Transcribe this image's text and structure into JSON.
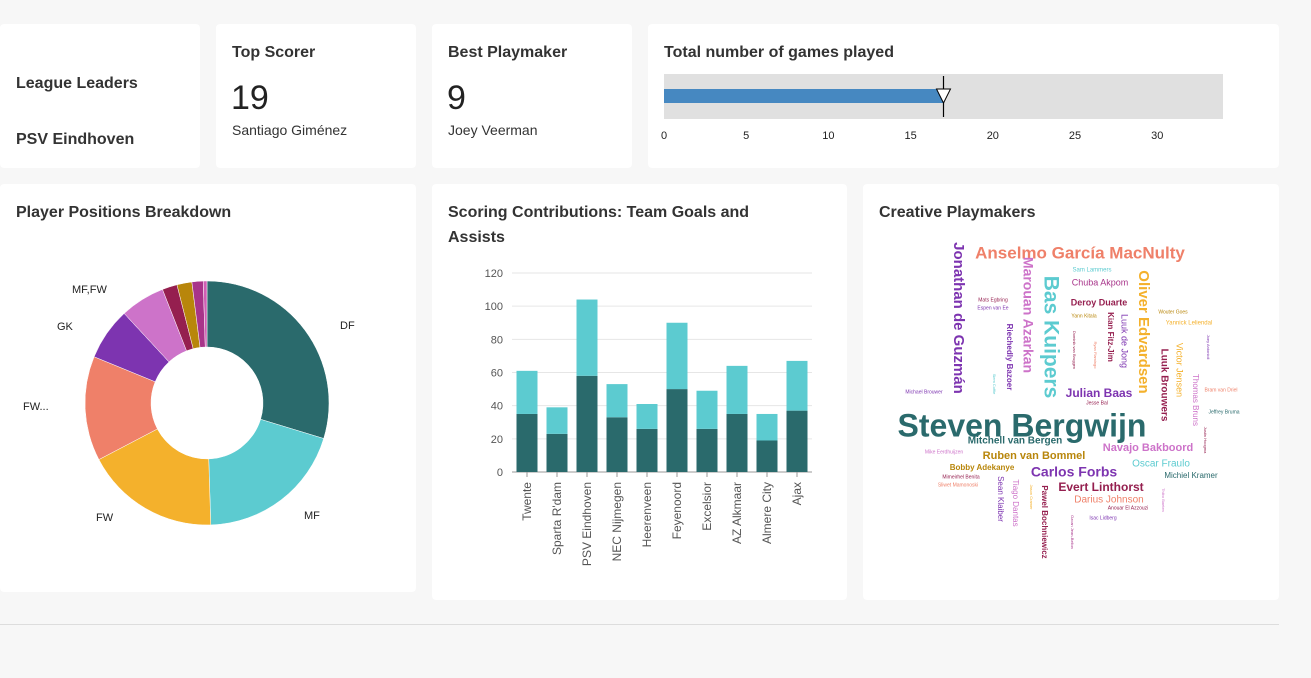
{
  "colors": {
    "background": "#f7f7f7",
    "card": "#ffffff",
    "bullet_bar": "#4688c1",
    "teal_dark": "#2a6a6c",
    "teal_light": "#5ccbd0"
  },
  "leaders": {
    "line1": "League Leaders",
    "line2": "PSV Eindhoven"
  },
  "top_scorer": {
    "title": "Top Scorer",
    "value": "19",
    "name": "Santiago Giménez"
  },
  "playmaker": {
    "title": "Best Playmaker",
    "value": "9",
    "name": "Joey Veerman"
  },
  "games": {
    "title": "Total number of games played",
    "value": 17,
    "marker": 17,
    "range": [
      0,
      34
    ],
    "ticks": [
      "0",
      "5",
      "10",
      "15",
      "20",
      "25",
      "30"
    ]
  },
  "positions_card": {
    "title": "Player Positions Breakdown"
  },
  "scoring_card": {
    "title": "Scoring Contributions: Team Goals and Assists"
  },
  "creative_card": {
    "title": "Creative Playmakers"
  },
  "chart_data": [
    {
      "type": "pie",
      "title": "Player Positions Breakdown",
      "slices": [
        {
          "label": "DF",
          "value": 30,
          "color": "#2a6a6c"
        },
        {
          "label": "MF",
          "value": 20,
          "color": "#5ccbd0"
        },
        {
          "label": "FW",
          "value": 18,
          "color": "#f4b12c"
        },
        {
          "label": "FW...",
          "value": 14,
          "color": "#ef8069"
        },
        {
          "label": "GK",
          "value": 7,
          "color": "#7d34b0"
        },
        {
          "label": "MF,FW",
          "value": 6,
          "color": "#cd73c9"
        },
        {
          "label": "",
          "value": 2,
          "color": "#951f4f"
        },
        {
          "label": "",
          "value": 2,
          "color": "#b8860b"
        },
        {
          "label": "",
          "value": 1.5,
          "color": "#a8348a"
        },
        {
          "label": "",
          "value": 0.5,
          "color": "#cf5fb4"
        }
      ]
    },
    {
      "type": "bar",
      "title": "Scoring Contributions: Team Goals and Assists",
      "categories": [
        "Twente",
        "Sparta R'dam",
        "PSV Eindhoven",
        "NEC Nijmegen",
        "Heerenveen",
        "Feyenoord",
        "Excelsior",
        "AZ Alkmaar",
        "Almere City",
        "Ajax"
      ],
      "stacked": true,
      "series": [
        {
          "values": [
            35,
            23,
            58,
            33,
            26,
            50,
            26,
            35,
            19,
            37
          ],
          "color": "#2a6a6c"
        },
        {
          "values": [
            26,
            16,
            46,
            20,
            15,
            40,
            23,
            29,
            16,
            30
          ],
          "color": "#5ccbd0"
        }
      ],
      "ylim": [
        0,
        120
      ],
      "yticks": [
        "0",
        "20",
        "40",
        "60",
        "80",
        "100",
        "120"
      ]
    }
  ],
  "wordcloud": [
    {
      "t": "Steven Bergwijn",
      "x": 1022,
      "y": 428,
      "s": 32,
      "c": "#2a6a6c",
      "w": "bold",
      "r": 0
    },
    {
      "t": "Anselmo García MacNulty",
      "x": 1080,
      "y": 254,
      "s": 17,
      "c": "#ef8069",
      "w": "bold",
      "r": 0
    },
    {
      "t": "Jonathan de Guzmán",
      "x": 958,
      "y": 318,
      "s": 15,
      "c": "#7d34b0",
      "w": "bold",
      "r": 90
    },
    {
      "t": "Bas Kuipers",
      "x": 1050,
      "y": 337,
      "s": 21,
      "c": "#5ccbd0",
      "w": "bold",
      "r": 90
    },
    {
      "t": "Oliver Edvardsen",
      "x": 1143,
      "y": 332,
      "s": 15,
      "c": "#f4b12c",
      "w": "bold",
      "r": 90
    },
    {
      "t": "Marouan Azarkan",
      "x": 1027,
      "y": 315,
      "s": 14,
      "c": "#cd73c9",
      "w": "bold",
      "r": 90
    },
    {
      "t": "Luuk Brouwers",
      "x": 1164,
      "y": 385,
      "s": 10,
      "c": "#951f4f",
      "w": "bold",
      "r": 90
    },
    {
      "t": "Victor Jensen",
      "x": 1179,
      "y": 370,
      "s": 9,
      "c": "#f4b12c",
      "w": "normal",
      "r": 90
    },
    {
      "t": "Thomas Bruns",
      "x": 1195,
      "y": 400,
      "s": 8,
      "c": "#cd73c9",
      "w": "normal",
      "r": 90
    },
    {
      "t": "Luuk de Jong",
      "x": 1124,
      "y": 341,
      "s": 9,
      "c": "#7d34b0",
      "w": "normal",
      "r": 90
    },
    {
      "t": "Kian Fitz-Jim",
      "x": 1110,
      "y": 337,
      "s": 8,
      "c": "#951f4f",
      "w": "bold",
      "r": 90
    },
    {
      "t": "Riechedly Bazoer",
      "x": 1009,
      "y": 357,
      "s": 8,
      "c": "#7d34b0",
      "w": "bold",
      "r": 90
    },
    {
      "t": "Chuba Akpom",
      "x": 1100,
      "y": 283,
      "s": 9,
      "c": "#a8348a",
      "w": "normal",
      "r": 0
    },
    {
      "t": "Deroy Duarte",
      "x": 1099,
      "y": 303,
      "s": 9,
      "c": "#951f4f",
      "w": "bold",
      "r": 0
    },
    {
      "t": "Julian Baas",
      "x": 1099,
      "y": 394,
      "s": 12,
      "c": "#7d34b0",
      "w": "bold",
      "r": 0
    },
    {
      "t": "Mitchell van Bergen",
      "x": 1015,
      "y": 441,
      "s": 10,
      "c": "#2a6a6c",
      "w": "bold",
      "r": 0
    },
    {
      "t": "Navajo Bakboord",
      "x": 1148,
      "y": 448,
      "s": 11,
      "c": "#cd73c9",
      "w": "bold",
      "r": 0
    },
    {
      "t": "Ruben van Bommel",
      "x": 1034,
      "y": 456,
      "s": 11,
      "c": "#b8860b",
      "w": "bold",
      "r": 0
    },
    {
      "t": "Oscar Fraulo",
      "x": 1161,
      "y": 464,
      "s": 10,
      "c": "#5ccbd0",
      "w": "normal",
      "r": 0
    },
    {
      "t": "Bobby Adekanye",
      "x": 982,
      "y": 468,
      "s": 8,
      "c": "#b8860b",
      "w": "bold",
      "r": 0
    },
    {
      "t": "Carlos Forbs",
      "x": 1074,
      "y": 473,
      "s": 14,
      "c": "#7d34b0",
      "w": "bold",
      "r": 0
    },
    {
      "t": "Michiel Kramer",
      "x": 1191,
      "y": 476,
      "s": 8,
      "c": "#2a6a6c",
      "w": "normal",
      "r": 0
    },
    {
      "t": "Evert Linthorst",
      "x": 1101,
      "y": 488,
      "s": 12,
      "c": "#951f4f",
      "w": "bold",
      "r": 0
    },
    {
      "t": "Darius Johnson",
      "x": 1109,
      "y": 500,
      "s": 10,
      "c": "#ef8069",
      "w": "normal",
      "r": 0
    },
    {
      "t": "Tiago Dantas",
      "x": 1015,
      "y": 503,
      "s": 8,
      "c": "#cd73c9",
      "w": "normal",
      "r": 90
    },
    {
      "t": "Sean Klaiber",
      "x": 1000,
      "y": 499,
      "s": 8,
      "c": "#7d34b0",
      "w": "normal",
      "r": 90
    },
    {
      "t": "Pawel Bochniewicz",
      "x": 1044,
      "y": 522,
      "s": 8,
      "c": "#951f4f",
      "w": "bold",
      "r": 90
    },
    {
      "t": "Sam Lammers",
      "x": 1092,
      "y": 270,
      "s": 6,
      "c": "#5ccbd0",
      "w": "normal",
      "r": 0
    },
    {
      "t": "Mats Egbring",
      "x": 993,
      "y": 300,
      "s": 5,
      "c": "#951f4f",
      "w": "normal",
      "r": 0
    },
    {
      "t": "Espen van Ee",
      "x": 993,
      "y": 308,
      "s": 5,
      "c": "#7d34b0",
      "w": "normal",
      "r": 0
    },
    {
      "t": "Yann Kitala",
      "x": 1084,
      "y": 316,
      "s": 5,
      "c": "#b8860b",
      "w": "normal",
      "r": 0
    },
    {
      "t": "Wouter Goes",
      "x": 1173,
      "y": 312,
      "s": 5,
      "c": "#b8860b",
      "w": "normal",
      "r": 0
    },
    {
      "t": "Yannick Leliendal",
      "x": 1189,
      "y": 323,
      "s": 6,
      "c": "#f4b12c",
      "w": "normal",
      "r": 0
    },
    {
      "t": "Dominik van Bruggen",
      "x": 1074,
      "y": 350,
      "s": 4,
      "c": "#951f4f",
      "w": "normal",
      "r": 90
    },
    {
      "t": "Ryan Flamingo",
      "x": 1095,
      "y": 355,
      "s": 4,
      "c": "#ef8069",
      "w": "normal",
      "r": 90
    },
    {
      "t": "Joey Antonioli",
      "x": 1208,
      "y": 347,
      "s": 4,
      "c": "#7d34b0",
      "w": "normal",
      "r": 90
    },
    {
      "t": "Michael Brouwer",
      "x": 924,
      "y": 392,
      "s": 5,
      "c": "#7d34b0",
      "w": "normal",
      "r": 0
    },
    {
      "t": "Siem Coffie",
      "x": 994,
      "y": 384,
      "s": 4,
      "c": "#5ccbd0",
      "w": "normal",
      "r": 90
    },
    {
      "t": "Jesse Bal",
      "x": 1097,
      "y": 403,
      "s": 5,
      "c": "#951f4f",
      "w": "normal",
      "r": 0
    },
    {
      "t": "Bram van Driel",
      "x": 1221,
      "y": 390,
      "s": 5,
      "c": "#ef8069",
      "w": "normal",
      "r": 0
    },
    {
      "t": "Jeffrey Bruma",
      "x": 1224,
      "y": 412,
      "s": 5,
      "c": "#2a6a6c",
      "w": "normal",
      "r": 0
    },
    {
      "t": "Justin Hoogma",
      "x": 1205,
      "y": 440,
      "s": 4,
      "c": "#951f4f",
      "w": "normal",
      "r": 90
    },
    {
      "t": "Mike Eerdhuijzen",
      "x": 944,
      "y": 452,
      "s": 5,
      "c": "#cd73c9",
      "w": "normal",
      "r": 0
    },
    {
      "t": "Mimeirhel Benita",
      "x": 961,
      "y": 477,
      "s": 5,
      "c": "#951f4f",
      "w": "normal",
      "r": 0
    },
    {
      "t": "Sliwet Mamonoski",
      "x": 958,
      "y": 485,
      "s": 5,
      "c": "#ef8069",
      "w": "normal",
      "r": 0
    },
    {
      "t": "Jason Cramer",
      "x": 1031,
      "y": 497,
      "s": 4,
      "c": "#f4b12c",
      "w": "normal",
      "r": 90
    },
    {
      "t": "Anouar El Azzouzi",
      "x": 1128,
      "y": 508,
      "s": 5,
      "c": "#951f4f",
      "w": "normal",
      "r": 0
    },
    {
      "t": "Isac Lidberg",
      "x": 1103,
      "y": 518,
      "s": 5,
      "c": "#7d34b0",
      "w": "normal",
      "r": 0
    },
    {
      "t": "Thibo Baeten",
      "x": 1163,
      "y": 500,
      "s": 4,
      "c": "#cd73c9",
      "w": "normal",
      "r": 90
    },
    {
      "t": "Ozcan Jean-Bellon",
      "x": 1072,
      "y": 532,
      "s": 4,
      "c": "#a8348a",
      "w": "normal",
      "r": 90
    }
  ]
}
